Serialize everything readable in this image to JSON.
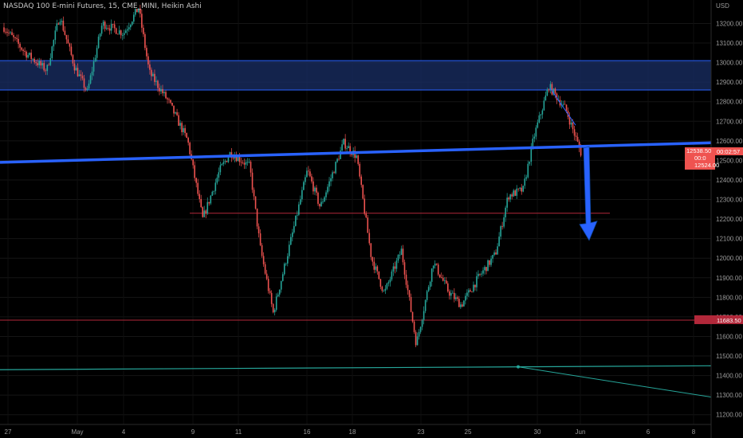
{
  "header": {
    "title": "NASDAQ 100 E-mini Futures, 15, CME_MINI, Heikin Ashi"
  },
  "price_axis": {
    "currency": "USD",
    "ticks": [
      "13200.00",
      "13100.00",
      "13000.00",
      "12900.00",
      "12800.00",
      "12700.00",
      "12600.00",
      "12500.00",
      "12400.00",
      "12300.00",
      "12200.00",
      "12100.00",
      "12000.00",
      "11900.00",
      "11800.00",
      "11700.00",
      "11600.00",
      "11500.00",
      "11400.00",
      "11300.00",
      "11200.00"
    ],
    "labels": {
      "last_price": "12538.50",
      "countdown": "00:02:57",
      "partial_1": "00:0",
      "partial_2": "12524.00",
      "support_level": "11683.50"
    }
  },
  "time_axis": {
    "ticks": [
      "27",
      "May",
      "4",
      "9",
      "11",
      "16",
      "18",
      "23",
      "25",
      "30",
      "Jun",
      "6",
      "8"
    ]
  },
  "colors": {
    "background": "#000000",
    "up_candle": "#26a69a",
    "down_candle": "#ef5350",
    "trendline": "#2962ff",
    "zone_fill": "#1a2f66",
    "support_line": "#b2283a",
    "bottom_line": "#26a69a",
    "price_tag": "#ef5350"
  },
  "chart_data": {
    "type": "candlestick",
    "title": "NASDAQ 100 E-mini Futures, 15, CME_MINI, Heikin Ashi",
    "y_unit": "USD",
    "ylim": [
      11150,
      13320
    ],
    "x_ticks": [
      "27",
      "May",
      "4",
      "9",
      "11",
      "16",
      "18",
      "23",
      "25",
      "30",
      "Jun",
      "6",
      "8"
    ],
    "y_ticks": [
      13200,
      13100,
      13000,
      12900,
      12800,
      12700,
      12600,
      12500,
      12400,
      12300,
      12200,
      12100,
      12000,
      11900,
      11800,
      11700,
      11600,
      11500,
      11400,
      11300,
      11200
    ],
    "price_path": [
      {
        "day": 0.0,
        "price": 13180
      },
      {
        "day": 1.0,
        "price": 13050
      },
      {
        "day": 2.0,
        "price": 12960
      },
      {
        "day": 2.6,
        "price": 13240
      },
      {
        "day": 3.3,
        "price": 12980
      },
      {
        "day": 3.9,
        "price": 12850
      },
      {
        "day": 4.6,
        "price": 13200
      },
      {
        "day": 5.6,
        "price": 13150
      },
      {
        "day": 6.3,
        "price": 13280
      },
      {
        "day": 6.8,
        "price": 12950
      },
      {
        "day": 7.7,
        "price": 12800
      },
      {
        "day": 8.6,
        "price": 12600
      },
      {
        "day": 9.3,
        "price": 12200
      },
      {
        "day": 10.1,
        "price": 12450
      },
      {
        "day": 10.6,
        "price": 12540
      },
      {
        "day": 11.5,
        "price": 12470
      },
      {
        "day": 12.0,
        "price": 12050
      },
      {
        "day": 12.6,
        "price": 11720
      },
      {
        "day": 13.4,
        "price": 12080
      },
      {
        "day": 14.2,
        "price": 12450
      },
      {
        "day": 14.8,
        "price": 12260
      },
      {
        "day": 15.9,
        "price": 12590
      },
      {
        "day": 16.5,
        "price": 12520
      },
      {
        "day": 17.2,
        "price": 12000
      },
      {
        "day": 17.8,
        "price": 11820
      },
      {
        "day": 18.6,
        "price": 12040
      },
      {
        "day": 19.3,
        "price": 11560
      },
      {
        "day": 20.1,
        "price": 11980
      },
      {
        "day": 20.8,
        "price": 11830
      },
      {
        "day": 21.4,
        "price": 11760
      },
      {
        "day": 22.2,
        "price": 11900
      },
      {
        "day": 23.0,
        "price": 12020
      },
      {
        "day": 23.6,
        "price": 12320
      },
      {
        "day": 24.3,
        "price": 12350
      },
      {
        "day": 24.8,
        "price": 12620
      },
      {
        "day": 25.5,
        "price": 12880
      },
      {
        "day": 26.3,
        "price": 12760
      },
      {
        "day": 27.0,
        "price": 12540
      }
    ],
    "annotations": {
      "resistance_zone": {
        "from": 12860,
        "to": 13010
      },
      "ascending_trendline": {
        "start_price": 12490,
        "end_price": 12590
      },
      "target_level": 12230,
      "support_level": 11683.5,
      "bottom_trendline": {
        "start_price": 11430,
        "end_price": 11450
      },
      "projection_arrow": {
        "from": 12530,
        "to": 12230
      }
    },
    "last_price": 12538.5
  }
}
